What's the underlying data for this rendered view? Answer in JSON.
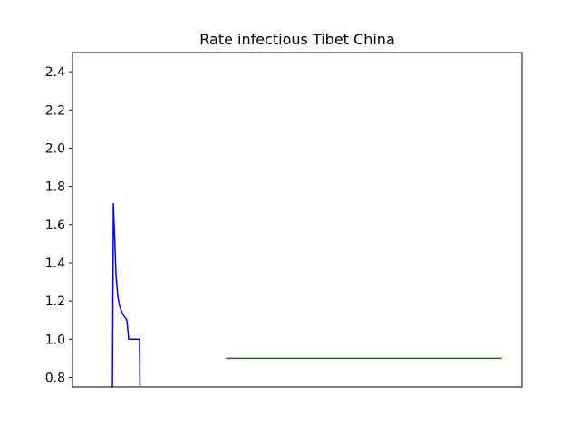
{
  "chart_data": {
    "type": "line",
    "title": "Rate infectious Tibet China",
    "xlabel": "",
    "ylabel": "",
    "xlim": [
      0,
      100
    ],
    "ylim": [
      0.75,
      2.5
    ],
    "yticks": [
      0.8,
      1.0,
      1.2,
      1.4,
      1.6,
      1.8,
      2.0,
      2.2,
      2.4
    ],
    "ytick_labels": [
      "0.8",
      "1.0",
      "1.2",
      "1.4",
      "1.6",
      "1.8",
      "2.0",
      "2.2",
      "2.4"
    ],
    "grid": false,
    "legend": "none",
    "series": [
      {
        "color": "#0000ff",
        "x": [
          8.9,
          9.1,
          9.7,
          10.1,
          10.5,
          11.0,
          11.5,
          12.1,
          12.5,
          14.5,
          14.9,
          15.0
        ],
        "y": [
          0.75,
          1.71,
          1.33,
          1.22,
          1.17,
          1.14,
          1.12,
          1.1,
          1.0,
          1.0,
          1.0,
          0.75
        ]
      },
      {
        "color": "#008000",
        "x": [
          34.1,
          95.5
        ],
        "y": [
          0.9,
          0.9
        ]
      }
    ]
  }
}
